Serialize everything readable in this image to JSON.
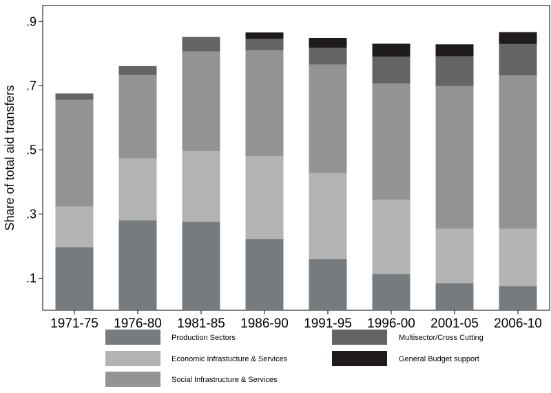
{
  "chart_data": {
    "type": "bar",
    "stacked": true,
    "title": "",
    "xlabel": "",
    "ylabel": "Share of total aid transfers",
    "ylim": [
      0,
      0.95
    ],
    "yticks": [
      0.1,
      0.3,
      0.5,
      0.7,
      0.9
    ],
    "ytick_labels": [
      ".1",
      ".3",
      ".5",
      ".7",
      ".9"
    ],
    "grid": false,
    "legend_position": "bottom",
    "categories": [
      "1971-75",
      "1976-80",
      "1981-85",
      "1986-90",
      "1991-95",
      "1996-00",
      "2001-05",
      "2006-10"
    ],
    "series": [
      {
        "name": "Production Sectors",
        "color": "#757b7e",
        "values": [
          0.197,
          0.281,
          0.276,
          0.222,
          0.159,
          0.113,
          0.084,
          0.075
        ]
      },
      {
        "name": "Economic Infrastucture & Services",
        "color": "#b3b3b3",
        "values": [
          0.126,
          0.193,
          0.22,
          0.258,
          0.269,
          0.232,
          0.17,
          0.179
        ]
      },
      {
        "name": "Social Infrastructure & Services",
        "color": "#939393",
        "values": [
          0.333,
          0.259,
          0.311,
          0.33,
          0.338,
          0.362,
          0.445,
          0.478
        ]
      },
      {
        "name": "Multisector/Cross Cutting",
        "color": "#626466",
        "values": [
          0.02,
          0.028,
          0.045,
          0.036,
          0.052,
          0.084,
          0.093,
          0.098
        ]
      },
      {
        "name": "General Budget support",
        "color": "#1f1a1b",
        "values": [
          0.0,
          0.0,
          0.0,
          0.02,
          0.031,
          0.04,
          0.037,
          0.037
        ]
      }
    ]
  }
}
